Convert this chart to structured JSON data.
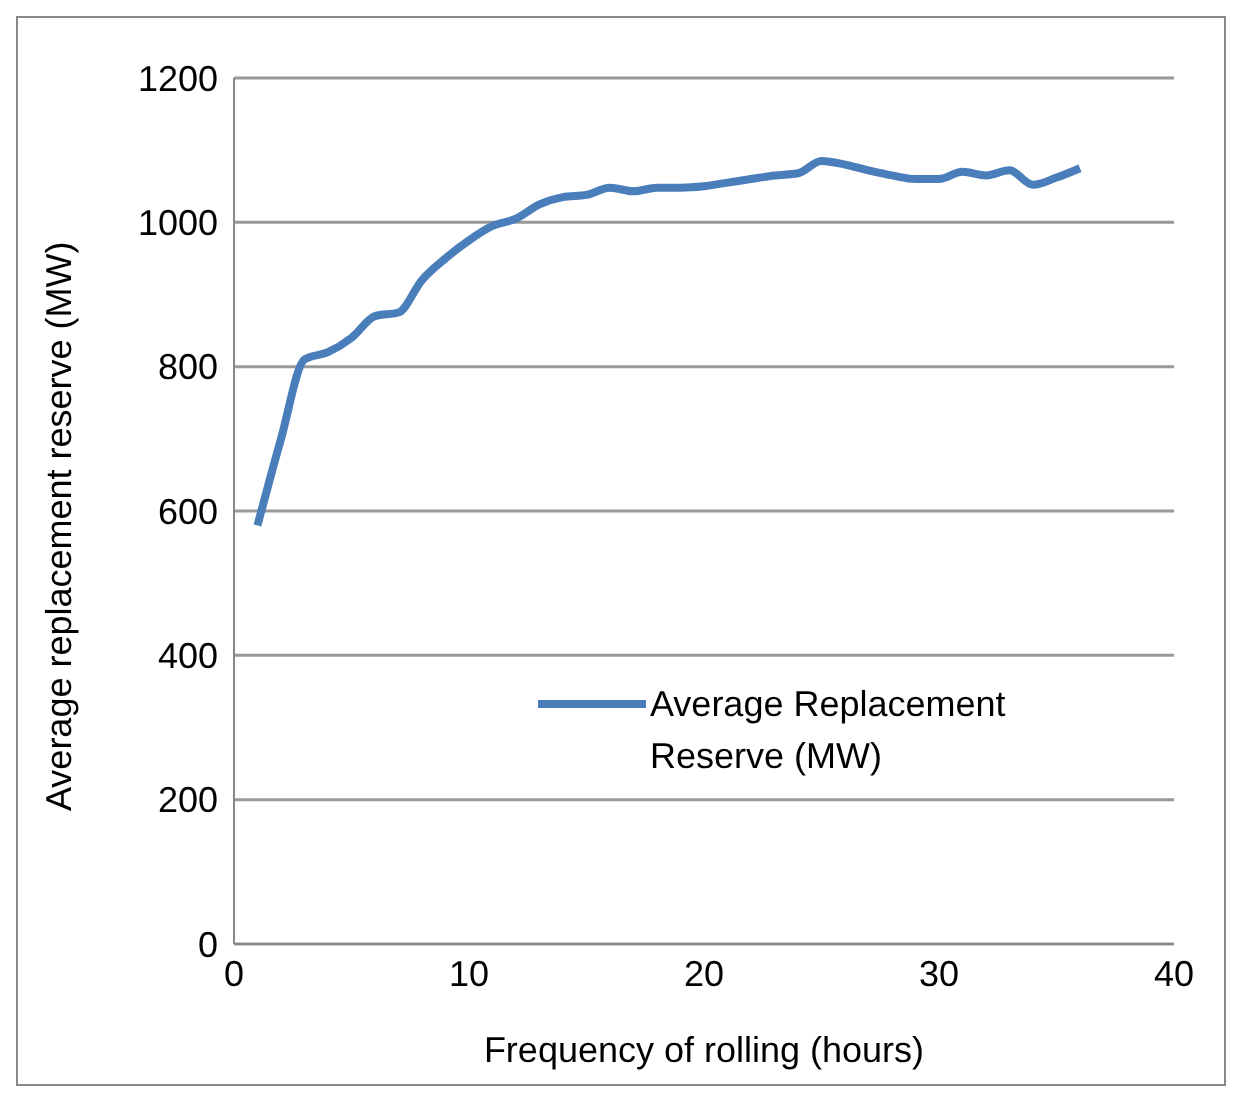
{
  "chart_data": {
    "type": "line",
    "xlabel": "Frequency of rolling (hours)",
    "ylabel": "Average replacement reserve (MW)",
    "x": [
      1,
      2,
      3,
      4,
      5,
      6,
      7,
      8,
      9,
      10,
      11,
      12,
      13,
      14,
      15,
      16,
      17,
      18,
      19,
      20,
      21,
      22,
      23,
      24,
      25,
      26,
      27,
      28,
      29,
      30,
      31,
      32,
      33,
      34,
      35,
      36
    ],
    "series": [
      {
        "name": "Average Replacement Reserve (MW)",
        "color": "#4a7ebb",
        "values": [
          580,
          700,
          810,
          820,
          840,
          870,
          875,
          920,
          950,
          975,
          995,
          1005,
          1025,
          1035,
          1038,
          1048,
          1043,
          1048,
          1048,
          1050,
          1055,
          1060,
          1065,
          1068,
          1085,
          1080,
          1072,
          1065,
          1060,
          1060,
          1070,
          1065,
          1072,
          1052,
          1062,
          1075
        ]
      }
    ],
    "xlim": [
      0,
      40
    ],
    "xticks": [
      0,
      10,
      20,
      30,
      40
    ],
    "ylim": [
      0,
      1200
    ],
    "yticks": [
      0,
      200,
      400,
      600,
      800,
      1000,
      1200
    ],
    "grid": "y",
    "legend": "bottom right",
    "marker": "none",
    "line_style": "solid"
  }
}
